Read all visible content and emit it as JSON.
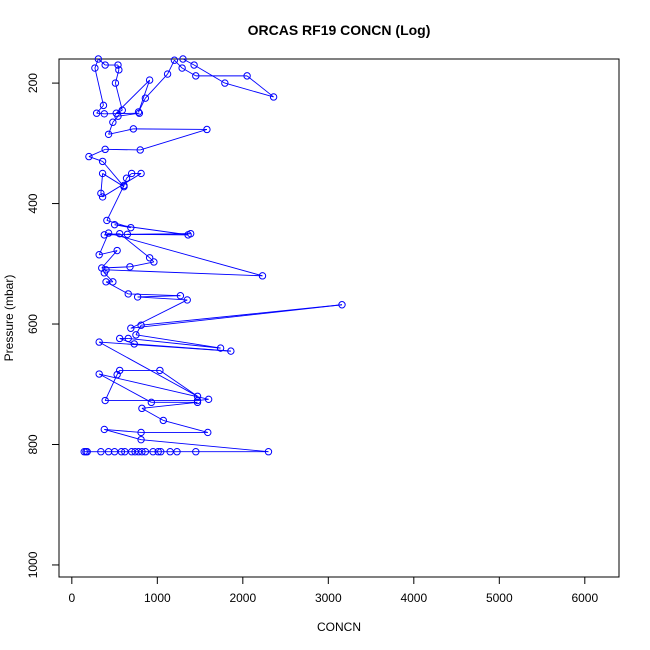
{
  "chart_data": {
    "type": "line",
    "title": "ORCAS RF19 CONCN (Log)",
    "xlabel": "CONCN",
    "ylabel": "Pressure (mbar)",
    "xlim": [
      -150,
      6400
    ],
    "ylim": [
      1020,
      160
    ],
    "x_ticks": [
      0,
      1000,
      2000,
      3000,
      4000,
      5000,
      6000
    ],
    "y_ticks": [
      200,
      400,
      600,
      800,
      1000
    ],
    "grid": false,
    "series_color": "#0000ff",
    "series": [
      {
        "points": [
          [
            145,
            812
          ],
          [
            165,
            812
          ],
          [
            180,
            812
          ],
          [
            340,
            812
          ],
          [
            430,
            812
          ],
          [
            500,
            812
          ],
          [
            580,
            812
          ],
          [
            620,
            812
          ],
          [
            700,
            812
          ],
          [
            740,
            812
          ],
          [
            780,
            812
          ],
          [
            820,
            812
          ],
          [
            860,
            812
          ],
          [
            950,
            812
          ],
          [
            1010,
            812
          ],
          [
            1040,
            812
          ],
          [
            1150,
            812
          ],
          [
            1230,
            812
          ],
          [
            1450,
            812
          ],
          [
            2300,
            812
          ],
          [
            810,
            792
          ],
          [
            380,
            775
          ],
          [
            810,
            780
          ],
          [
            1590,
            780
          ],
          [
            1070,
            760
          ],
          [
            820,
            740
          ],
          [
            1470,
            730
          ],
          [
            930,
            730
          ],
          [
            320,
            683
          ],
          [
            1600,
            725
          ],
          [
            1470,
            727
          ],
          [
            390,
            727
          ],
          [
            530,
            684
          ],
          [
            560,
            677
          ],
          [
            1030,
            677
          ],
          [
            1470,
            720
          ],
          [
            320,
            630
          ],
          [
            1860,
            645
          ],
          [
            730,
            633
          ],
          [
            560,
            624
          ],
          [
            660,
            624
          ],
          [
            1740,
            640
          ],
          [
            750,
            618
          ],
          [
            810,
            602
          ],
          [
            3160,
            568
          ],
          [
            690,
            607
          ],
          [
            1350,
            560
          ],
          [
            770,
            555
          ],
          [
            1270,
            553
          ],
          [
            660,
            550
          ],
          [
            400,
            530
          ],
          [
            480,
            530
          ],
          [
            380,
            515
          ],
          [
            400,
            510
          ],
          [
            2230,
            520
          ],
          [
            430,
            449
          ],
          [
            320,
            485
          ],
          [
            530,
            478
          ],
          [
            350,
            507
          ],
          [
            680,
            505
          ],
          [
            960,
            497
          ],
          [
            910,
            490
          ],
          [
            560,
            450
          ],
          [
            380,
            452
          ],
          [
            1390,
            450
          ],
          [
            650,
            451
          ],
          [
            1360,
            452
          ],
          [
            500,
            435
          ],
          [
            690,
            440
          ],
          [
            410,
            428
          ],
          [
            610,
            370
          ],
          [
            640,
            358
          ],
          [
            700,
            350
          ],
          [
            810,
            350
          ],
          [
            360,
            389
          ],
          [
            340,
            383
          ],
          [
            360,
            350
          ],
          [
            610,
            372
          ],
          [
            360,
            330
          ],
          [
            200,
            322
          ],
          [
            390,
            310
          ],
          [
            800,
            311
          ],
          [
            1580,
            277
          ],
          [
            720,
            276
          ],
          [
            430,
            285
          ],
          [
            480,
            265
          ],
          [
            540,
            255
          ],
          [
            790,
            250
          ],
          [
            380,
            251
          ],
          [
            290,
            250
          ],
          [
            370,
            237
          ],
          [
            270,
            175
          ],
          [
            310,
            160
          ],
          [
            390,
            170
          ],
          [
            540,
            170
          ],
          [
            550,
            178
          ],
          [
            510,
            200
          ],
          [
            590,
            245
          ],
          [
            520,
            250
          ],
          [
            910,
            195
          ],
          [
            780,
            248
          ],
          [
            860,
            225
          ],
          [
            1120,
            185
          ],
          [
            1200,
            162
          ],
          [
            1290,
            175
          ],
          [
            1450,
            188
          ],
          [
            2050,
            188
          ],
          [
            2360,
            223
          ],
          [
            1790,
            200
          ],
          [
            1430,
            170
          ],
          [
            1300,
            160
          ]
        ]
      }
    ]
  }
}
